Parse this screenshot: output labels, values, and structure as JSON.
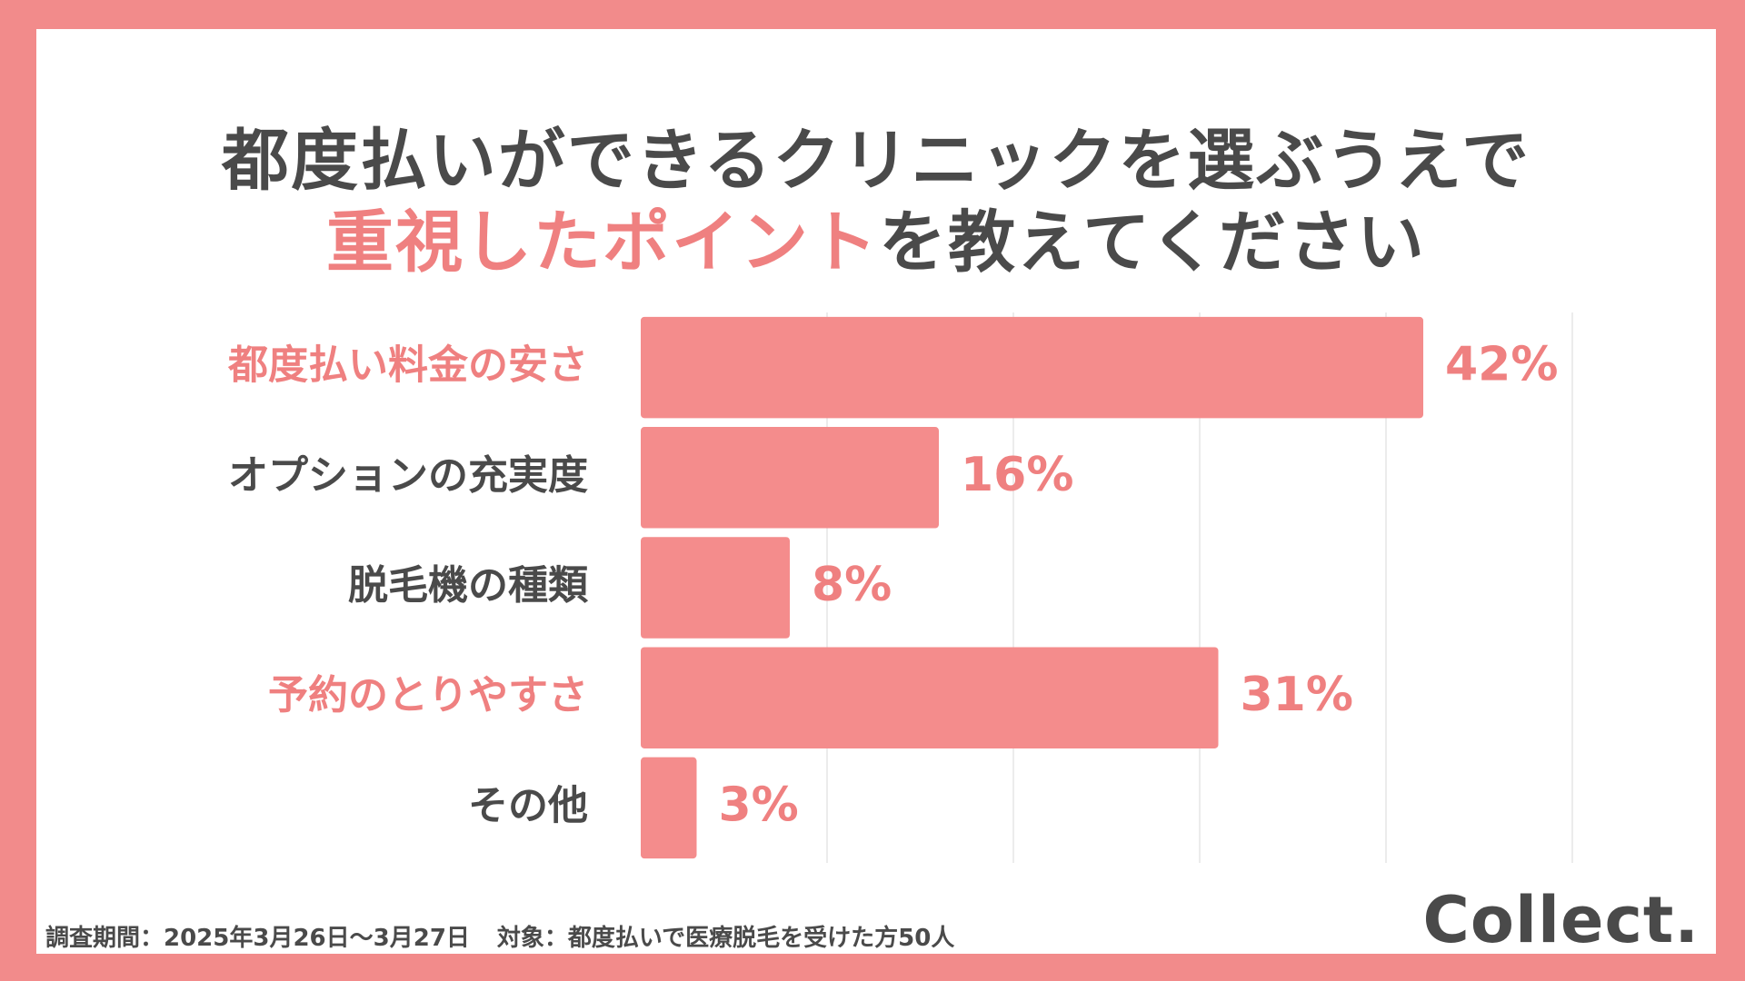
{
  "title": {
    "line1": "都度払いができるクリニックを選ぶうえで",
    "line2_accent": "重視したポイント",
    "line2_rest": "を教えてください"
  },
  "chart_data": {
    "type": "bar",
    "orientation": "horizontal",
    "categories": [
      "都度払い料金の安さ",
      "オプションの充実度",
      "脱毛機の種類",
      "予約のとりやすさ",
      "その他"
    ],
    "values": [
      42,
      16,
      8,
      31,
      3
    ],
    "value_labels": [
      "42%",
      "16%",
      "8%",
      "31%",
      "3%"
    ],
    "highlighted": [
      true,
      false,
      false,
      true,
      false
    ],
    "xlim": [
      0,
      50
    ],
    "grid": true,
    "colors": {
      "bar": "#f48c8c",
      "value_label": "#ef8080",
      "label_highlight": "#ef8080",
      "label_normal": "#4a4a4a",
      "grid": "#e6e6e6"
    }
  },
  "footer": {
    "period": "調査期間：2025年3月26日〜3月27日",
    "target": "対象：都度払いで医療脱毛を受けた方50人"
  },
  "logo": "Collect."
}
